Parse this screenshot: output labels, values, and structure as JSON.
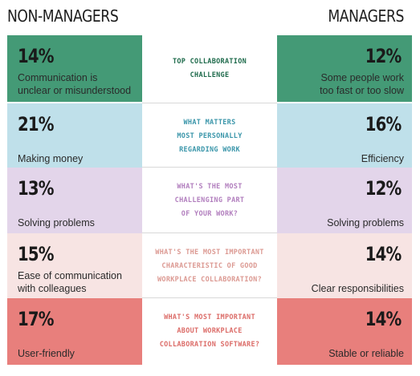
{
  "header": {
    "left": "NON-MANAGERS",
    "right": "MANAGERS"
  },
  "rows": [
    {
      "color": "#449a76",
      "question_color": "#1f6b4c",
      "nm_pct": "14%",
      "nm_label": "Communication is\nunclear or misunderstood",
      "question": "TOP COLLABORATION\nCHALLENGE",
      "m_pct": "12%",
      "m_label": "Some people work\ntoo fast or too slow"
    },
    {
      "color": "#bfe0ea",
      "question_color": "#3b96aa",
      "nm_pct": "21%",
      "nm_label": "Making money",
      "question": "WHAT MATTERS\nMOST PERSONALLY\nREGARDING WORK",
      "m_pct": "16%",
      "m_label": "Efficiency"
    },
    {
      "color": "#e3d5ea",
      "question_color": "#b27fbe",
      "nm_pct": "13%",
      "nm_label": "Solving problems",
      "question": "WHAT'S THE MOST\nCHALLENGING PART\nOF YOUR WORK?",
      "m_pct": "12%",
      "m_label": "Solving problems"
    },
    {
      "color": "#f7e4e3",
      "question_color": "#dc9a93",
      "nm_pct": "15%",
      "nm_label": "Ease of communication\nwith colleagues",
      "question": "WHAT'S THE MOST IMPORTANT\nCHARACTERISTIC OF GOOD\nWORKPLACE COLLABORATION?",
      "m_pct": "14%",
      "m_label": "Clear responsibilities"
    },
    {
      "color": "#e87f7c",
      "question_color": "#dc6d69",
      "nm_pct": "17%",
      "nm_label": "User-friendly",
      "question": "WHAT'S MOST IMPORTANT\nABOUT WORKPLACE\nCOLLABORATION SOFTWARE?",
      "m_pct": "14%",
      "m_label": "Stable or reliable"
    }
  ]
}
